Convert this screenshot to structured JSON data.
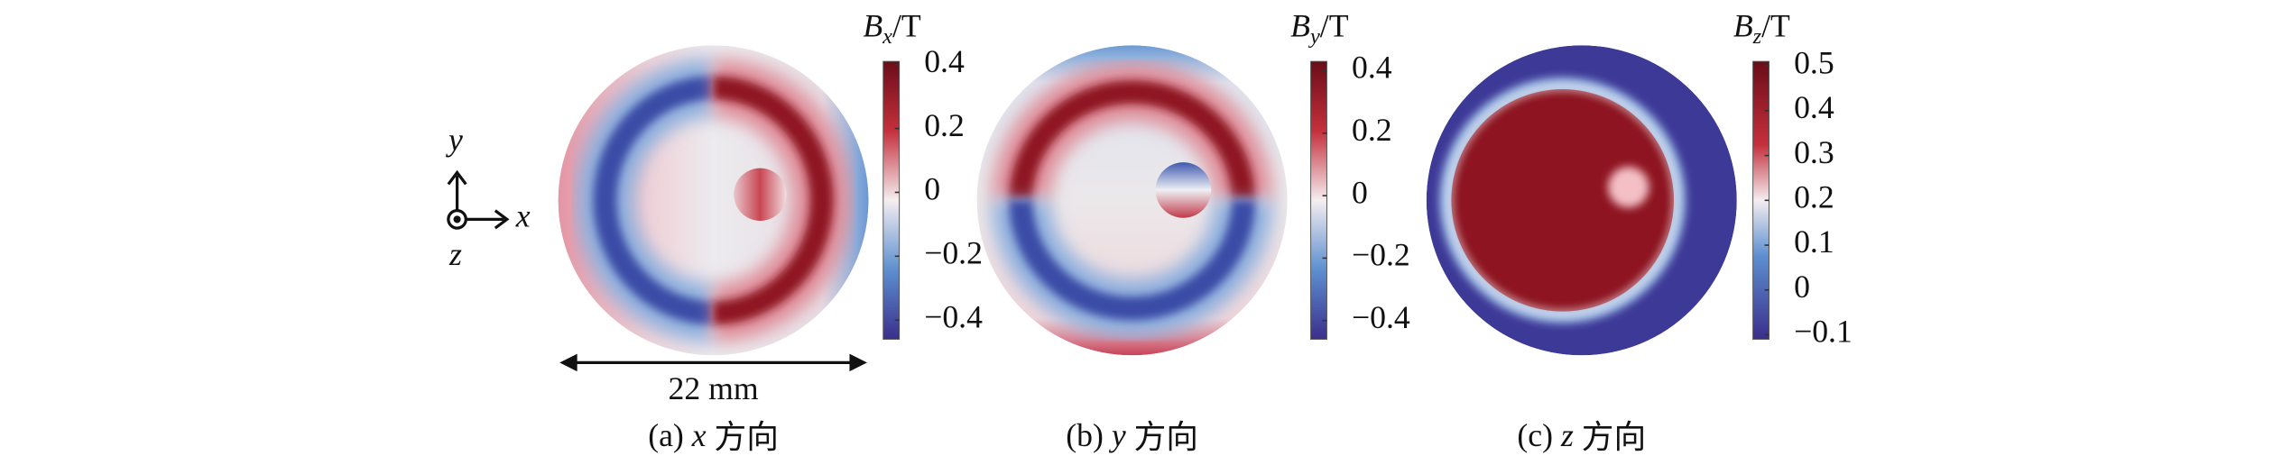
{
  "axes_glyph": {
    "y": "y",
    "x": "x",
    "z": "z"
  },
  "scale_bar": "22 mm",
  "panels": [
    {
      "caption": {
        "tag": "(a)",
        "axis": "x",
        "text": "方向"
      },
      "colorbar": {
        "symbol": "B",
        "subscript": "x",
        "unit": "/T",
        "lim": [
          -0.46,
          0.41
        ],
        "ticks": [
          0.4,
          0.2,
          0,
          {
            "value": -0.2,
            "label": "−0.2"
          },
          {
            "value": -0.4,
            "label": "−0.4"
          }
        ]
      }
    },
    {
      "caption": {
        "tag": "(b)",
        "axis": "y",
        "text": "方向"
      },
      "colorbar": {
        "symbol": "B",
        "subscript": "y",
        "unit": "/T",
        "lim": [
          -0.46,
          0.43
        ],
        "ticks": [
          0.4,
          0.2,
          0,
          {
            "value": -0.2,
            "label": "−0.2"
          },
          {
            "value": -0.4,
            "label": "−0.4"
          }
        ]
      }
    },
    {
      "caption": {
        "tag": "(c)",
        "axis": "z",
        "text": "方向"
      },
      "colorbar": {
        "symbol": "B",
        "subscript": "z",
        "unit": "/T",
        "lim": [
          -0.11,
          0.51
        ],
        "ticks": [
          0.5,
          0.4,
          0.3,
          0.2,
          0.1,
          0,
          {
            "value": -0.1,
            "label": "−0.1"
          }
        ]
      }
    }
  ]
}
